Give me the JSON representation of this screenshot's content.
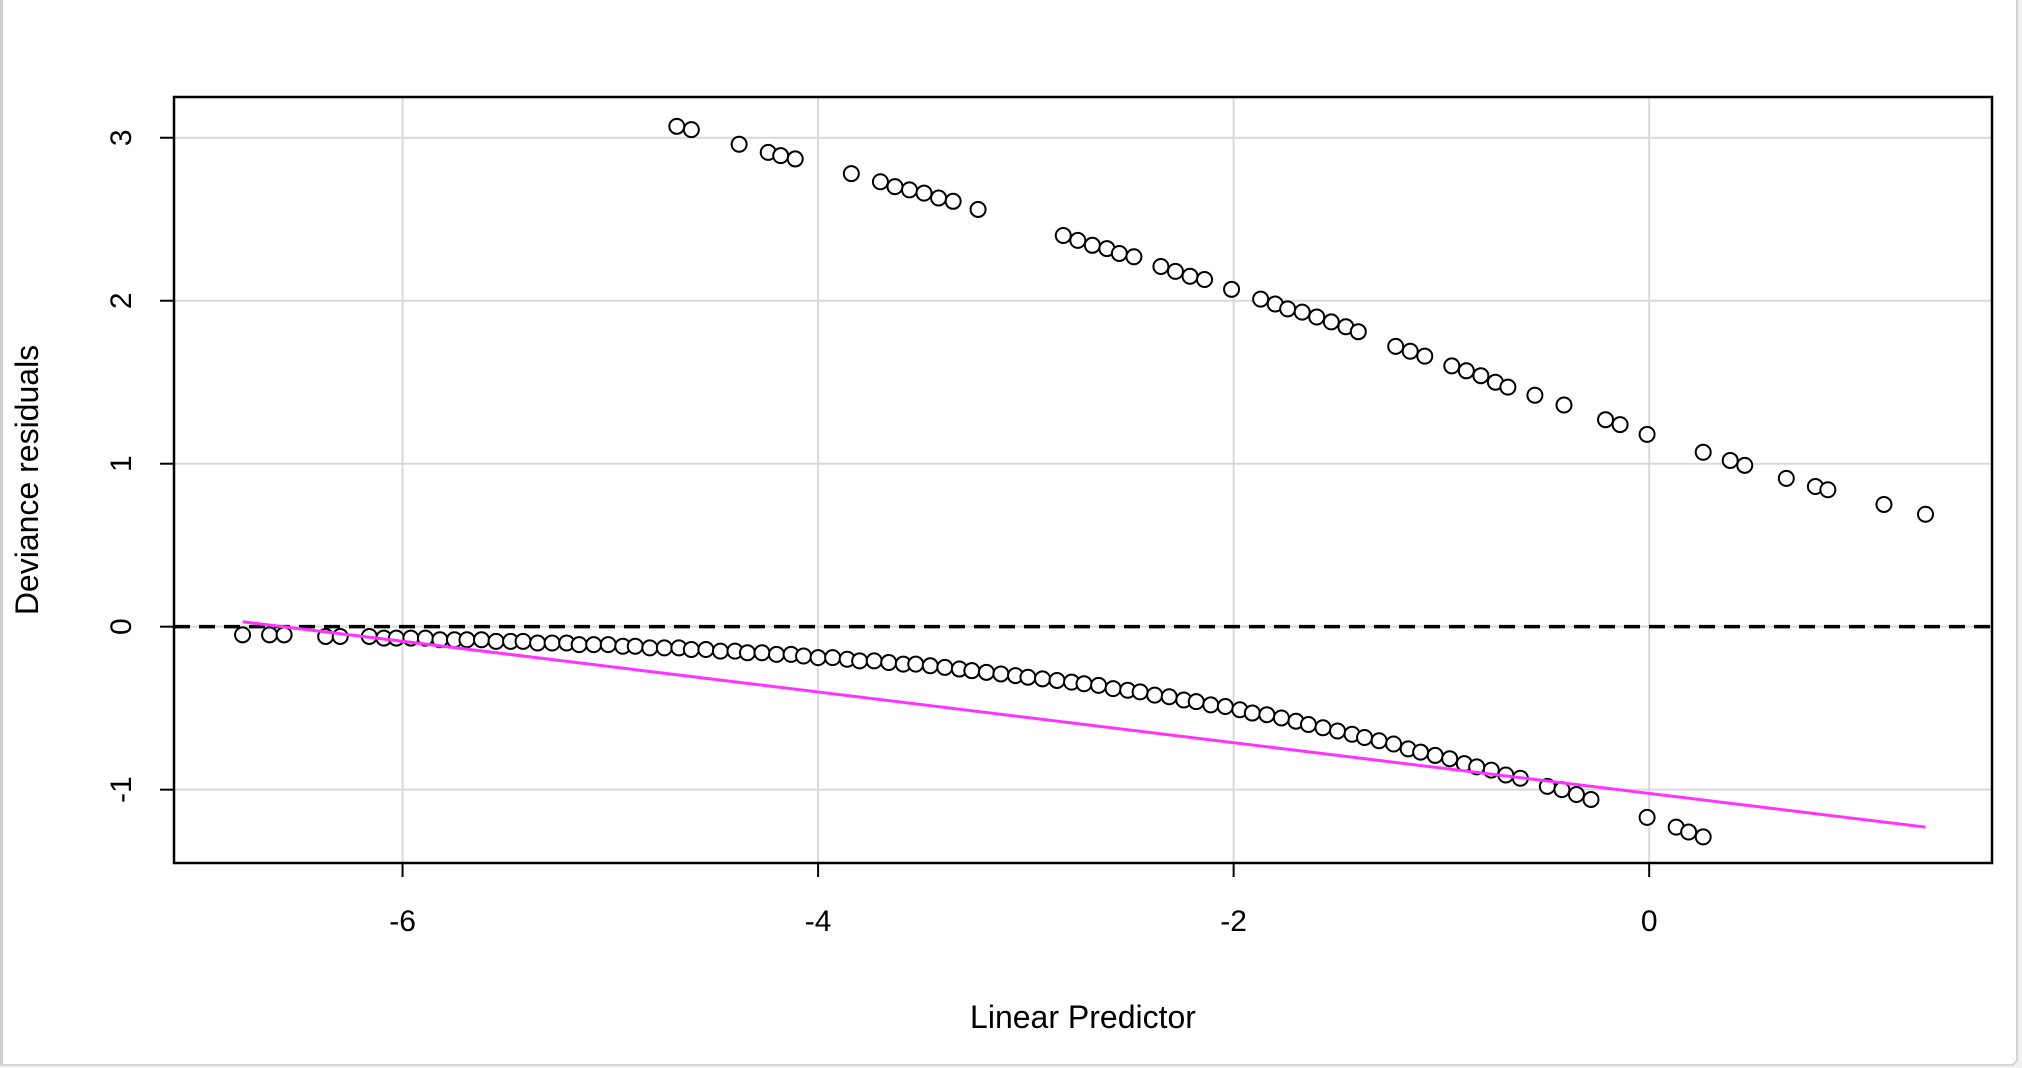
{
  "chart_data": {
    "type": "scatter",
    "title": "",
    "xlabel": "Linear Predictor",
    "ylabel": "Deviance residuals",
    "xlim": [
      -7.1,
      1.65
    ],
    "ylim": [
      -1.45,
      3.25
    ],
    "xticks": [
      -6,
      -4,
      -2,
      0
    ],
    "yticks": [
      -1,
      0,
      1,
      2,
      3
    ],
    "xtick_labels": [
      "-6",
      "-4",
      "-2",
      "0"
    ],
    "ytick_labels": [
      "-1",
      "0",
      "1",
      "2",
      "3"
    ],
    "grid": true,
    "reference_line": {
      "y": 0,
      "style": "dashed",
      "color": "#000000"
    },
    "smooth_line": {
      "color": "#ff33ff",
      "x": [
        -6.77,
        1.33
      ],
      "y": [
        0.03,
        -1.23
      ]
    },
    "series": [
      {
        "points": [
          {
            "x": -4.68,
            "y": 3.07
          },
          {
            "x": -4.61,
            "y": 3.05
          },
          {
            "x": -4.38,
            "y": 2.96
          },
          {
            "x": -4.24,
            "y": 2.91
          },
          {
            "x": -4.18,
            "y": 2.89
          },
          {
            "x": -4.11,
            "y": 2.87
          },
          {
            "x": -3.84,
            "y": 2.78
          },
          {
            "x": -3.7,
            "y": 2.73
          },
          {
            "x": -3.63,
            "y": 2.7
          },
          {
            "x": -3.56,
            "y": 2.68
          },
          {
            "x": -3.49,
            "y": 2.66
          },
          {
            "x": -3.42,
            "y": 2.63
          },
          {
            "x": -3.35,
            "y": 2.61
          },
          {
            "x": -3.23,
            "y": 2.56
          },
          {
            "x": -2.82,
            "y": 2.4
          },
          {
            "x": -2.75,
            "y": 2.37
          },
          {
            "x": -2.68,
            "y": 2.34
          },
          {
            "x": -2.61,
            "y": 2.32
          },
          {
            "x": -2.55,
            "y": 2.29
          },
          {
            "x": -2.48,
            "y": 2.27
          },
          {
            "x": -2.35,
            "y": 2.21
          },
          {
            "x": -2.28,
            "y": 2.18
          },
          {
            "x": -2.21,
            "y": 2.15
          },
          {
            "x": -2.14,
            "y": 2.13
          },
          {
            "x": -2.01,
            "y": 2.07
          },
          {
            "x": -1.87,
            "y": 2.01
          },
          {
            "x": -1.8,
            "y": 1.98
          },
          {
            "x": -1.74,
            "y": 1.95
          },
          {
            "x": -1.67,
            "y": 1.93
          },
          {
            "x": -1.6,
            "y": 1.9
          },
          {
            "x": -1.53,
            "y": 1.87
          },
          {
            "x": -1.46,
            "y": 1.84
          },
          {
            "x": -1.4,
            "y": 1.81
          },
          {
            "x": -1.22,
            "y": 1.72
          },
          {
            "x": -1.15,
            "y": 1.69
          },
          {
            "x": -1.08,
            "y": 1.66
          },
          {
            "x": -0.95,
            "y": 1.6
          },
          {
            "x": -0.88,
            "y": 1.57
          },
          {
            "x": -0.81,
            "y": 1.54
          },
          {
            "x": -0.74,
            "y": 1.5
          },
          {
            "x": -0.68,
            "y": 1.47
          },
          {
            "x": -0.55,
            "y": 1.42
          },
          {
            "x": -0.41,
            "y": 1.36
          },
          {
            "x": -0.21,
            "y": 1.27
          },
          {
            "x": -0.14,
            "y": 1.24
          },
          {
            "x": -0.01,
            "y": 1.18
          },
          {
            "x": 0.26,
            "y": 1.07
          },
          {
            "x": 0.39,
            "y": 1.02
          },
          {
            "x": 0.46,
            "y": 0.99
          },
          {
            "x": 0.66,
            "y": 0.91
          },
          {
            "x": 0.8,
            "y": 0.86
          },
          {
            "x": 0.86,
            "y": 0.84
          },
          {
            "x": 1.13,
            "y": 0.75
          },
          {
            "x": 1.33,
            "y": 0.69
          },
          {
            "x": -6.77,
            "y": -0.05
          },
          {
            "x": -6.64,
            "y": -0.05
          },
          {
            "x": -6.57,
            "y": -0.05
          },
          {
            "x": -6.37,
            "y": -0.06
          },
          {
            "x": -6.3,
            "y": -0.06
          },
          {
            "x": -6.16,
            "y": -0.06
          },
          {
            "x": -6.09,
            "y": -0.07
          },
          {
            "x": -6.03,
            "y": -0.07
          },
          {
            "x": -5.96,
            "y": -0.07
          },
          {
            "x": -5.89,
            "y": -0.07
          },
          {
            "x": -5.82,
            "y": -0.08
          },
          {
            "x": -5.75,
            "y": -0.08
          },
          {
            "x": -5.69,
            "y": -0.08
          },
          {
            "x": -5.62,
            "y": -0.08
          },
          {
            "x": -5.55,
            "y": -0.09
          },
          {
            "x": -5.48,
            "y": -0.09
          },
          {
            "x": -5.42,
            "y": -0.09
          },
          {
            "x": -5.35,
            "y": -0.1
          },
          {
            "x": -5.28,
            "y": -0.1
          },
          {
            "x": -5.21,
            "y": -0.1
          },
          {
            "x": -5.15,
            "y": -0.11
          },
          {
            "x": -5.08,
            "y": -0.11
          },
          {
            "x": -5.01,
            "y": -0.11
          },
          {
            "x": -4.94,
            "y": -0.12
          },
          {
            "x": -4.88,
            "y": -0.12
          },
          {
            "x": -4.81,
            "y": -0.13
          },
          {
            "x": -4.74,
            "y": -0.13
          },
          {
            "x": -4.67,
            "y": -0.13
          },
          {
            "x": -4.61,
            "y": -0.14
          },
          {
            "x": -4.54,
            "y": -0.14
          },
          {
            "x": -4.47,
            "y": -0.15
          },
          {
            "x": -4.4,
            "y": -0.15
          },
          {
            "x": -4.34,
            "y": -0.16
          },
          {
            "x": -4.27,
            "y": -0.16
          },
          {
            "x": -4.2,
            "y": -0.17
          },
          {
            "x": -4.13,
            "y": -0.17
          },
          {
            "x": -4.07,
            "y": -0.18
          },
          {
            "x": -4.0,
            "y": -0.19
          },
          {
            "x": -3.93,
            "y": -0.19
          },
          {
            "x": -3.86,
            "y": -0.2
          },
          {
            "x": -3.8,
            "y": -0.21
          },
          {
            "x": -3.73,
            "y": -0.21
          },
          {
            "x": -3.66,
            "y": -0.22
          },
          {
            "x": -3.59,
            "y": -0.23
          },
          {
            "x": -3.53,
            "y": -0.23
          },
          {
            "x": -3.46,
            "y": -0.24
          },
          {
            "x": -3.39,
            "y": -0.25
          },
          {
            "x": -3.32,
            "y": -0.26
          },
          {
            "x": -3.26,
            "y": -0.27
          },
          {
            "x": -3.19,
            "y": -0.28
          },
          {
            "x": -3.12,
            "y": -0.29
          },
          {
            "x": -3.05,
            "y": -0.3
          },
          {
            "x": -2.99,
            "y": -0.31
          },
          {
            "x": -2.92,
            "y": -0.32
          },
          {
            "x": -2.85,
            "y": -0.33
          },
          {
            "x": -2.78,
            "y": -0.34
          },
          {
            "x": -2.72,
            "y": -0.35
          },
          {
            "x": -2.65,
            "y": -0.36
          },
          {
            "x": -2.58,
            "y": -0.38
          },
          {
            "x": -2.51,
            "y": -0.39
          },
          {
            "x": -2.45,
            "y": -0.4
          },
          {
            "x": -2.38,
            "y": -0.42
          },
          {
            "x": -2.31,
            "y": -0.43
          },
          {
            "x": -2.24,
            "y": -0.45
          },
          {
            "x": -2.18,
            "y": -0.46
          },
          {
            "x": -2.11,
            "y": -0.48
          },
          {
            "x": -2.04,
            "y": -0.49
          },
          {
            "x": -1.97,
            "y": -0.51
          },
          {
            "x": -1.91,
            "y": -0.53
          },
          {
            "x": -1.84,
            "y": -0.54
          },
          {
            "x": -1.77,
            "y": -0.56
          },
          {
            "x": -1.7,
            "y": -0.58
          },
          {
            "x": -1.64,
            "y": -0.6
          },
          {
            "x": -1.57,
            "y": -0.62
          },
          {
            "x": -1.5,
            "y": -0.64
          },
          {
            "x": -1.43,
            "y": -0.66
          },
          {
            "x": -1.37,
            "y": -0.68
          },
          {
            "x": -1.3,
            "y": -0.7
          },
          {
            "x": -1.23,
            "y": -0.72
          },
          {
            "x": -1.16,
            "y": -0.75
          },
          {
            "x": -1.1,
            "y": -0.77
          },
          {
            "x": -1.03,
            "y": -0.79
          },
          {
            "x": -0.96,
            "y": -0.81
          },
          {
            "x": -0.89,
            "y": -0.84
          },
          {
            "x": -0.83,
            "y": -0.86
          },
          {
            "x": -0.76,
            "y": -0.88
          },
          {
            "x": -0.69,
            "y": -0.91
          },
          {
            "x": -0.62,
            "y": -0.93
          },
          {
            "x": -0.49,
            "y": -0.98
          },
          {
            "x": -0.42,
            "y": -1.0
          },
          {
            "x": -0.35,
            "y": -1.03
          },
          {
            "x": -0.28,
            "y": -1.06
          },
          {
            "x": -0.01,
            "y": -1.17
          },
          {
            "x": 0.13,
            "y": -1.23
          },
          {
            "x": 0.19,
            "y": -1.26
          },
          {
            "x": 0.26,
            "y": -1.29
          }
        ]
      }
    ]
  }
}
